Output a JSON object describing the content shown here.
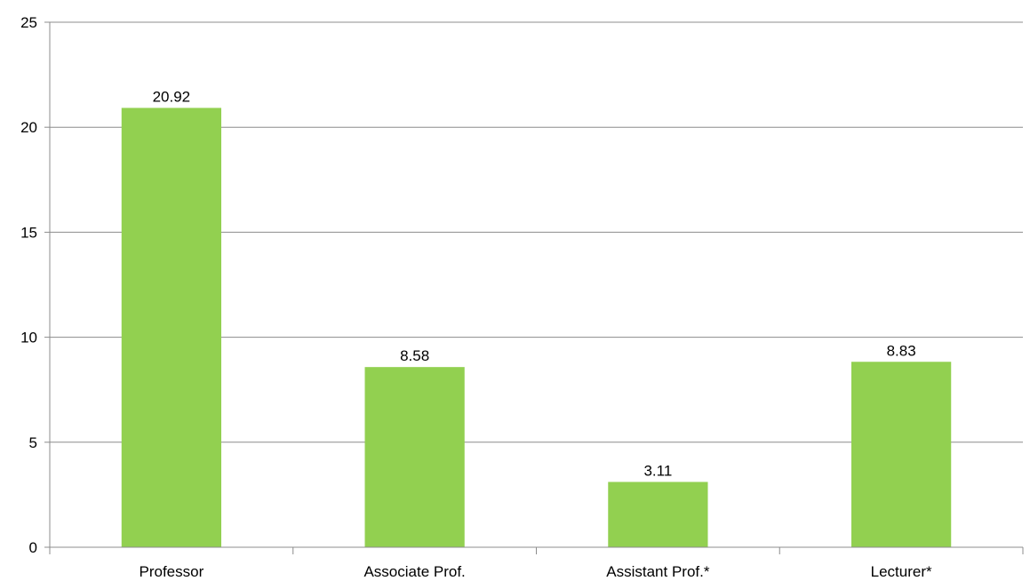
{
  "chart_data": {
    "type": "bar",
    "title": "",
    "xlabel": "",
    "ylabel": "",
    "categories": [
      "Professor",
      "Associate Prof.",
      "Assistant Prof.*",
      "Lecturer*"
    ],
    "values": [
      20.92,
      8.58,
      3.11,
      8.83
    ],
    "data_labels": [
      "20.92",
      "8.58",
      "3.11",
      "8.83"
    ],
    "ylim": [
      0,
      25
    ],
    "yticks": [
      0,
      5,
      10,
      15,
      20,
      25
    ],
    "grid": true,
    "legend": "none",
    "colors": {
      "bar": "#92d050",
      "grid": "#8c8c8c",
      "axis": "#8c8c8c",
      "text": "#000000"
    }
  }
}
